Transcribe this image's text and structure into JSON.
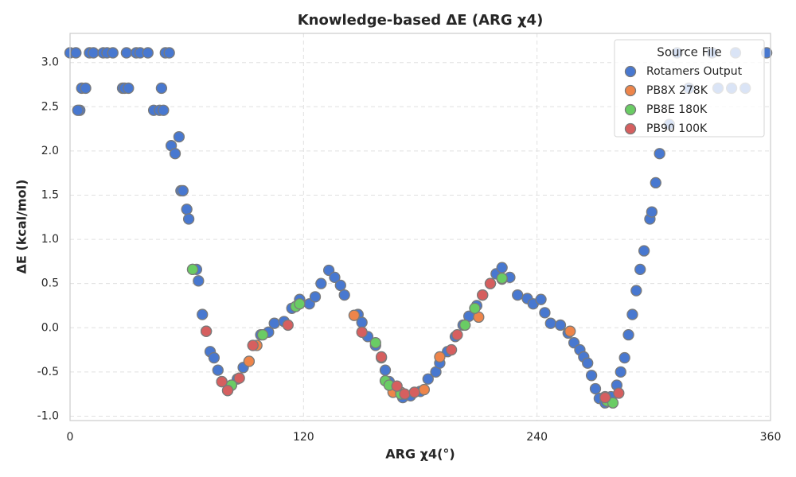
{
  "chart_data": {
    "type": "scatter",
    "title": "Knowledge-based ΔE (ARG χ4)",
    "x_label": "ARG χ4(°)",
    "y_label": "ΔE (kcal/mol)",
    "xlim": [
      0,
      360
    ],
    "ylim": [
      -1.05,
      3.33
    ],
    "xticks": [
      0,
      120,
      240,
      360
    ],
    "yticks": [
      {
        "value": -1,
        "label": "-1.0"
      },
      -0.5,
      {
        "value": 0,
        "label": "0.0"
      },
      0.5,
      {
        "value": 1,
        "label": "1.0"
      },
      1.5,
      {
        "value": 2,
        "label": "2.0"
      },
      2.5,
      {
        "value": 3,
        "label": "3.0"
      }
    ],
    "grid": true,
    "legend_title": "Source File",
    "legend_position": "upper right",
    "series": [
      {
        "name": "Rotamers Output",
        "color": "#4878d0",
        "x": [
          0,
          3,
          5,
          4,
          6,
          8,
          10,
          12,
          17,
          19,
          22,
          27,
          29,
          28,
          30,
          34,
          36,
          40,
          43,
          46,
          47,
          48,
          49,
          51,
          52,
          54,
          56,
          57,
          58,
          60,
          61,
          63,
          65,
          66,
          68,
          70,
          72,
          74,
          76,
          78,
          81,
          83,
          86,
          89,
          92,
          94,
          98,
          102,
          105,
          110,
          114,
          118,
          123,
          126,
          129,
          133,
          136,
          139,
          141,
          148,
          150,
          153,
          157,
          160,
          162,
          164,
          168,
          171,
          175,
          180,
          184,
          188,
          190,
          194,
          198,
          202,
          205,
          209,
          212,
          216,
          219,
          222,
          226,
          230,
          235,
          238,
          242,
          244,
          247,
          252,
          256,
          259,
          262,
          264,
          266,
          268,
          270,
          272,
          275,
          278,
          281,
          283,
          285,
          287,
          289,
          291,
          293,
          295,
          298,
          299,
          301,
          303,
          308,
          312,
          318,
          330,
          333,
          340,
          342,
          347,
          358
        ],
        "values": [
          3.11,
          3.11,
          2.46,
          2.46,
          2.71,
          2.71,
          3.11,
          3.11,
          3.11,
          3.11,
          3.11,
          2.71,
          3.11,
          2.71,
          2.71,
          3.11,
          3.11,
          3.11,
          2.46,
          2.46,
          2.71,
          2.46,
          3.11,
          3.11,
          2.06,
          1.97,
          2.16,
          1.55,
          1.55,
          1.34,
          1.23,
          0.66,
          0.66,
          0.53,
          0.15,
          -0.04,
          -0.27,
          -0.34,
          -0.48,
          -0.61,
          -0.71,
          -0.65,
          -0.58,
          -0.45,
          -0.38,
          -0.2,
          -0.08,
          -0.05,
          0.05,
          0.07,
          0.22,
          0.32,
          0.27,
          0.35,
          0.5,
          0.65,
          0.57,
          0.48,
          0.37,
          0.15,
          0.06,
          -0.1,
          -0.2,
          -0.34,
          -0.48,
          -0.61,
          -0.72,
          -0.79,
          -0.77,
          -0.72,
          -0.58,
          -0.5,
          -0.4,
          -0.27,
          -0.1,
          0.03,
          0.13,
          0.25,
          0.37,
          0.5,
          0.61,
          0.68,
          0.57,
          0.37,
          0.33,
          0.27,
          0.32,
          0.17,
          0.05,
          0.03,
          -0.06,
          -0.17,
          -0.25,
          -0.33,
          -0.4,
          -0.54,
          -0.69,
          -0.8,
          -0.85,
          -0.78,
          -0.65,
          -0.5,
          -0.34,
          -0.08,
          0.15,
          0.42,
          0.66,
          0.87,
          1.23,
          1.31,
          1.64,
          1.97,
          2.3,
          3.11,
          2.71,
          3.11,
          2.71,
          2.71,
          3.11,
          2.71,
          3.11
        ]
      },
      {
        "name": "PB8X 278K",
        "color": "#ee854a",
        "x": [
          92,
          96,
          146,
          166,
          170,
          182,
          190,
          210,
          222,
          257,
          275
        ],
        "values": [
          -0.38,
          -0.2,
          0.14,
          -0.73,
          -0.73,
          -0.7,
          -0.33,
          0.12,
          0.55,
          -0.04,
          -0.78
        ]
      },
      {
        "name": "PB8E 180K",
        "color": "#6acc64",
        "x": [
          63,
          83,
          99,
          116,
          118,
          157,
          162,
          164,
          170,
          203,
          208,
          222,
          276,
          279
        ],
        "values": [
          0.66,
          -0.65,
          -0.08,
          0.24,
          0.27,
          -0.17,
          -0.6,
          -0.65,
          -0.75,
          0.03,
          0.22,
          0.56,
          -0.83,
          -0.85
        ]
      },
      {
        "name": "PB90 100K",
        "color": "#d65f5f",
        "x": [
          70,
          78,
          81,
          87,
          94,
          112,
          150,
          160,
          168,
          172,
          177,
          196,
          199,
          212,
          216,
          275,
          282
        ],
        "values": [
          -0.04,
          -0.61,
          -0.71,
          -0.57,
          -0.2,
          0.03,
          -0.05,
          -0.33,
          -0.66,
          -0.75,
          -0.73,
          -0.25,
          -0.08,
          0.37,
          0.5,
          -0.79,
          -0.74
        ]
      }
    ]
  }
}
